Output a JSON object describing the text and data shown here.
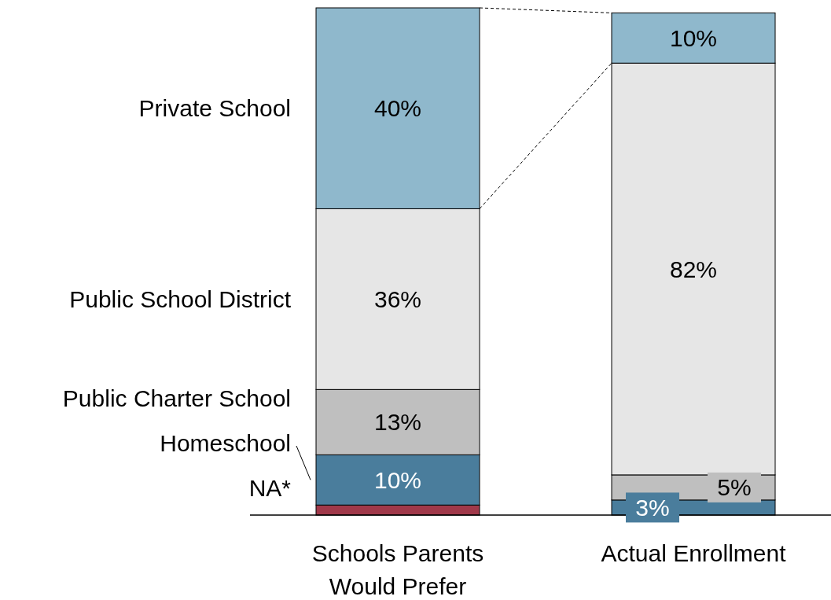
{
  "chart_data": {
    "type": "bar",
    "stacked": true,
    "categories": [
      "Schools Parents Would Prefer",
      "Actual Enrollment"
    ],
    "series": [
      {
        "name": "NA*",
        "color": "#a0394a",
        "values": [
          2,
          0
        ],
        "value_labels": [
          null,
          null
        ]
      },
      {
        "name": "Homeschool",
        "color": "#4a7d9c",
        "values": [
          10,
          3
        ],
        "value_labels": [
          "10%",
          "3%"
        ]
      },
      {
        "name": "Public Charter School",
        "color": "#bfbfbf",
        "values": [
          13,
          5
        ],
        "value_labels": [
          "13%",
          "5%"
        ]
      },
      {
        "name": "Public School District",
        "color": "#e6e6e6",
        "values": [
          36,
          82
        ],
        "value_labels": [
          "36%",
          "82%"
        ]
      },
      {
        "name": "Private School",
        "color": "#8fb8cc",
        "values": [
          40,
          10
        ],
        "value_labels": [
          "40%",
          "10%"
        ]
      }
    ],
    "legend": "left"
  }
}
